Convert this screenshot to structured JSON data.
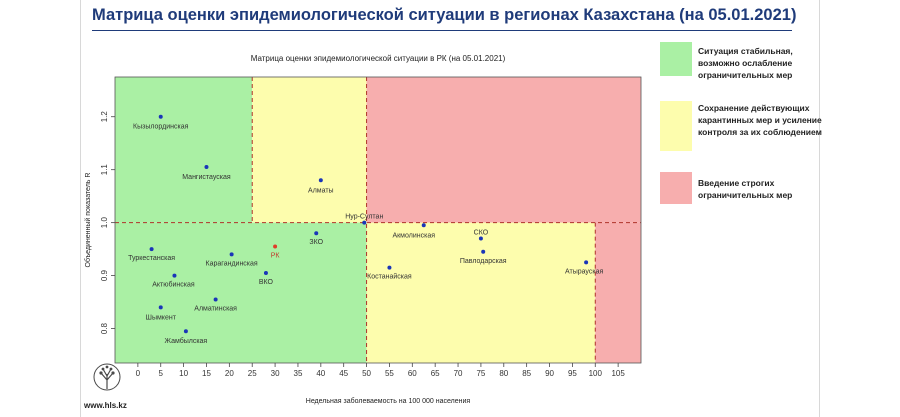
{
  "slide": {
    "title": "Матрица оценки эпидемиологической ситуации в регионах Казахстана (на 05.01.2021)",
    "website": "www.hls.kz"
  },
  "legend": [
    {
      "label": "Ситуация стабильная, возможно ослабление ограничительных мер",
      "color": "#aaf0a4"
    },
    {
      "label": "Сохранение действующих карантинных мер и усиление контроля за их соблюдением",
      "color": "#fdfdad"
    },
    {
      "label": "Введение строгих ограничительных мер",
      "color": "#f7aeae"
    }
  ],
  "chart_data": {
    "type": "scatter",
    "title": "Матрица оценки эпидемиологической ситуации в РК (на 05.01.2021)",
    "xlabel": "Недельная заболеваемость на 100 000 населения",
    "ylabel": "Объединенный показатель R",
    "xlim": [
      -5,
      110
    ],
    "ylim": [
      0.735,
      1.275
    ],
    "xticks": [
      0,
      5,
      10,
      15,
      20,
      25,
      30,
      35,
      40,
      45,
      50,
      55,
      60,
      65,
      70,
      75,
      80,
      85,
      90,
      95,
      100,
      105
    ],
    "yticks": [
      0.8,
      0.9,
      1.0,
      1.1,
      1.2
    ],
    "thresholds": {
      "x": [
        25,
        50,
        100
      ],
      "y": 1.0
    },
    "zones": [
      {
        "x_range": [
          -5,
          25
        ],
        "y_range": [
          1.0,
          1.275
        ],
        "color": "#aaf0a4"
      },
      {
        "x_range": [
          25,
          50
        ],
        "y_range": [
          1.0,
          1.275
        ],
        "color": "#fdfdad"
      },
      {
        "x_range": [
          50,
          110
        ],
        "y_range": [
          1.0,
          1.275
        ],
        "color": "#f7aeae"
      },
      {
        "x_range": [
          -5,
          50
        ],
        "y_range": [
          0.735,
          1.0
        ],
        "color": "#aaf0a4"
      },
      {
        "x_range": [
          50,
          100
        ],
        "y_range": [
          0.735,
          1.0
        ],
        "color": "#fdfdad"
      },
      {
        "x_range": [
          100,
          110
        ],
        "y_range": [
          0.735,
          1.0
        ],
        "color": "#f7aeae"
      }
    ],
    "points": [
      {
        "name": "Кызылординская",
        "x": 5,
        "y": 1.2,
        "color": "#1a35b8"
      },
      {
        "name": "Мангистауская",
        "x": 15,
        "y": 1.105,
        "color": "#1a35b8"
      },
      {
        "name": "Алматы",
        "x": 40,
        "y": 1.08,
        "color": "#1a35b8"
      },
      {
        "name": "Нур-Султан",
        "x": 49.5,
        "y": 1.0,
        "color": "#1a35b8"
      },
      {
        "name": "Акмолинская",
        "x": 62.5,
        "y": 0.995,
        "color": "#1a35b8"
      },
      {
        "name": "СКО",
        "x": 75,
        "y": 0.97,
        "color": "#1a35b8"
      },
      {
        "name": "Павлодарская",
        "x": 75.5,
        "y": 0.945,
        "color": "#1a35b8"
      },
      {
        "name": "Атырауская",
        "x": 98,
        "y": 0.925,
        "color": "#1a35b8"
      },
      {
        "name": "Костанайская",
        "x": 55,
        "y": 0.915,
        "color": "#1a35b8"
      },
      {
        "name": "ЗКО",
        "x": 39,
        "y": 0.98,
        "color": "#1a35b8"
      },
      {
        "name": "Туркестанская",
        "x": 3,
        "y": 0.95,
        "color": "#1a35b8"
      },
      {
        "name": "Карагандинская",
        "x": 20.5,
        "y": 0.94,
        "color": "#1a35b8"
      },
      {
        "name": "РК",
        "x": 30,
        "y": 0.955,
        "color": "#e03d2a"
      },
      {
        "name": "Актюбинская",
        "x": 8,
        "y": 0.9,
        "color": "#1a35b8"
      },
      {
        "name": "ВКО",
        "x": 28,
        "y": 0.905,
        "color": "#1a35b8"
      },
      {
        "name": "Алматинская",
        "x": 17,
        "y": 0.855,
        "color": "#1a35b8"
      },
      {
        "name": "Шымкент",
        "x": 5,
        "y": 0.84,
        "color": "#1a35b8"
      },
      {
        "name": "Жамбылская",
        "x": 10.5,
        "y": 0.795,
        "color": "#1a35b8"
      }
    ]
  }
}
